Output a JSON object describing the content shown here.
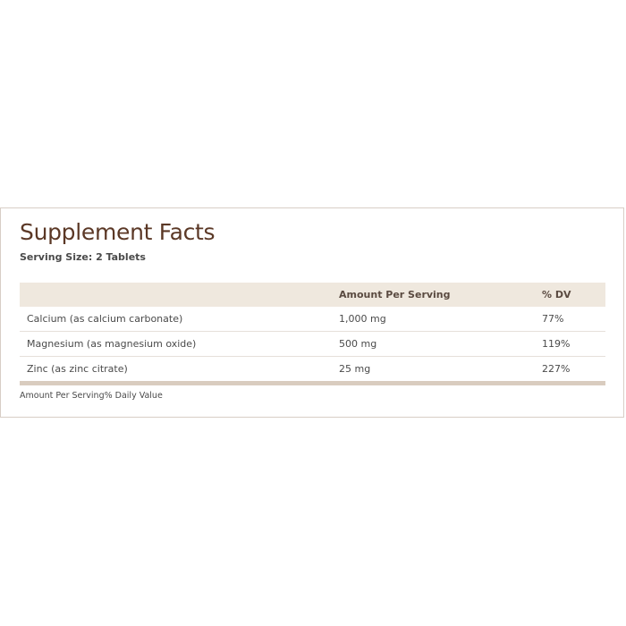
{
  "title": "Supplement Facts",
  "serving_size": "Serving Size: 2 Tablets",
  "table": {
    "header": [
      "Amount Per Serving",
      "% DV"
    ],
    "rows": [
      [
        "Calcium (as calcium carbonate)",
        "1,000 mg",
        "77%"
      ],
      [
        "Magnesium (as magnesium oxide)",
        "500 mg",
        "119%"
      ],
      [
        "Zinc (as zinc citrate)",
        "25 mg",
        "227%"
      ]
    ]
  },
  "footnote": "Amount Per Serving% Daily Value"
}
